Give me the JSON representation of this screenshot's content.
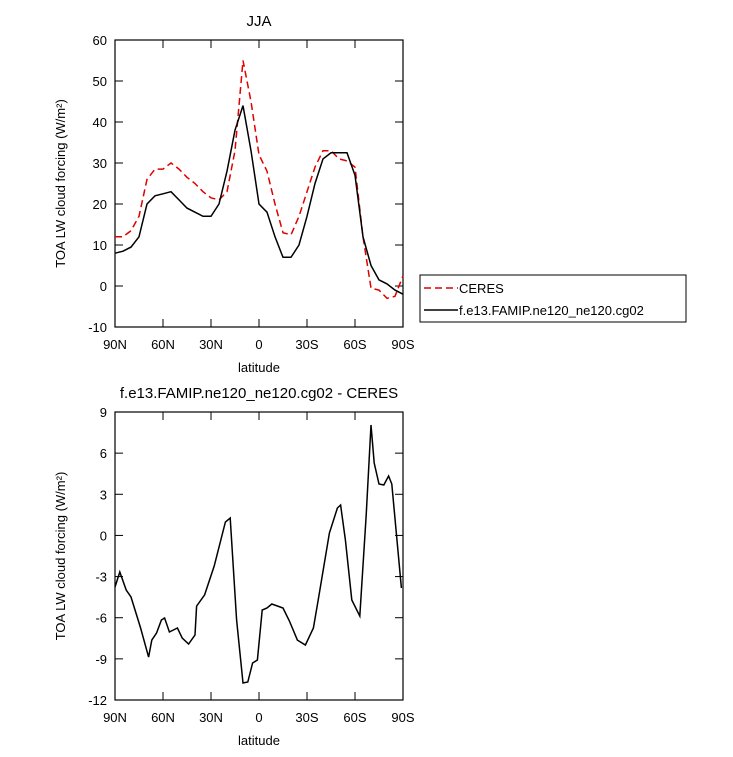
{
  "chart_data": [
    {
      "type": "line",
      "title": "JJA",
      "xlabel": "latitude",
      "ylabel": "TOA LW cloud forcing (W/m²)",
      "x": [
        90,
        85,
        80,
        75,
        70,
        65,
        60,
        55,
        50,
        45,
        40,
        35,
        30,
        25,
        20,
        15,
        10,
        5,
        0,
        -5,
        -10,
        -15,
        -20,
        -25,
        -30,
        -35,
        -40,
        -45,
        -50,
        -55,
        -60,
        -65,
        -70,
        -75,
        -80,
        -85,
        -90
      ],
      "series": [
        {
          "name": "CERES",
          "color": "#e00000",
          "linestyle": "dashed",
          "values": [
            12,
            12,
            13.5,
            17,
            26,
            28.5,
            28.5,
            30,
            28.5,
            26.5,
            25,
            23,
            21.5,
            21,
            23,
            33,
            55,
            45,
            32,
            28,
            20,
            13,
            12.5,
            17,
            23,
            29,
            33,
            33,
            31,
            30.5,
            29,
            12,
            -0.5,
            -1,
            -3,
            -2.5,
            2.5
          ]
        },
        {
          "name": "f.e13.FAMIP.ne120_ne120.cg02",
          "color": "#000000",
          "linestyle": "solid",
          "values": [
            8,
            8.5,
            9.5,
            12,
            20,
            22,
            22.5,
            23,
            21,
            19,
            18,
            17,
            17,
            20,
            28,
            38,
            44,
            33,
            20,
            18,
            12,
            7,
            7,
            10,
            17,
            25,
            31,
            32.5,
            32.5,
            32.5,
            27,
            12,
            5,
            1.5,
            0.5,
            -1,
            -2
          ]
        }
      ],
      "xlim": [
        90,
        -90
      ],
      "xticks": [
        {
          "value": 90,
          "label": "90N"
        },
        {
          "value": 60,
          "label": "60N"
        },
        {
          "value": 30,
          "label": "30N"
        },
        0,
        {
          "value": -30,
          "label": "30S"
        },
        {
          "value": -60,
          "label": "60S"
        },
        {
          "value": -90,
          "label": "90S"
        }
      ],
      "ylim": [
        -10,
        60
      ],
      "yticks": [
        -10,
        0,
        10,
        20,
        30,
        40,
        50,
        60
      ],
      "legend": "right"
    },
    {
      "type": "line",
      "title": "f.e13.FAMIP.ne120_ne120.cg02 - CERES",
      "xlabel": "latitude",
      "ylabel": "TOA LW cloud forcing (W/m²)",
      "x": [
        90,
        87,
        83,
        80,
        74,
        69,
        67,
        64,
        61,
        59,
        56,
        51,
        48,
        44,
        40,
        39,
        34,
        28,
        21,
        18,
        14,
        10,
        7,
        4,
        1,
        -2,
        -5,
        -8,
        -15,
        -19,
        -24,
        -29,
        -34,
        -37,
        -44,
        -49,
        -51,
        -54,
        -58,
        -63,
        -67,
        -70,
        -72,
        -75,
        -78,
        -81,
        -83,
        -89
      ],
      "series": [
        {
          "name": "f.e13.FAMIP.ne120_ne120.cg02 - CERES",
          "color": "#000000",
          "linestyle": "solid",
          "values": [
            -3.76,
            -2.67,
            -3.98,
            -4.49,
            -6.75,
            -8.87,
            -7.63,
            -7.11,
            -6.17,
            -6.02,
            -7.04,
            -6.75,
            -7.48,
            -7.92,
            -7.26,
            -5.15,
            -4.34,
            -2.23,
            0.98,
            1.27,
            -6.17,
            -10.76,
            -10.69,
            -9.3,
            -9.08,
            -5.44,
            -5.29,
            -5.0,
            -5.29,
            -6.24,
            -7.63,
            -7.99,
            -6.75,
            -4.71,
            0.18,
            2.0,
            2.22,
            -0.33,
            -4.71,
            -5.88,
            1.49,
            8.05,
            5.28,
            3.75,
            3.68,
            4.33,
            3.75,
            -3.83
          ]
        }
      ],
      "xlim": [
        90,
        -90
      ],
      "xticks": [
        {
          "value": 90,
          "label": "90N"
        },
        {
          "value": 60,
          "label": "60N"
        },
        {
          "value": 30,
          "label": "30N"
        },
        0,
        {
          "value": -30,
          "label": "30S"
        },
        {
          "value": -60,
          "label": "60S"
        },
        {
          "value": -90,
          "label": "90S"
        }
      ],
      "ylim": [
        -12,
        9
      ],
      "yticks": [
        -12,
        -9,
        -6,
        -3,
        0,
        3,
        6,
        9
      ]
    }
  ]
}
